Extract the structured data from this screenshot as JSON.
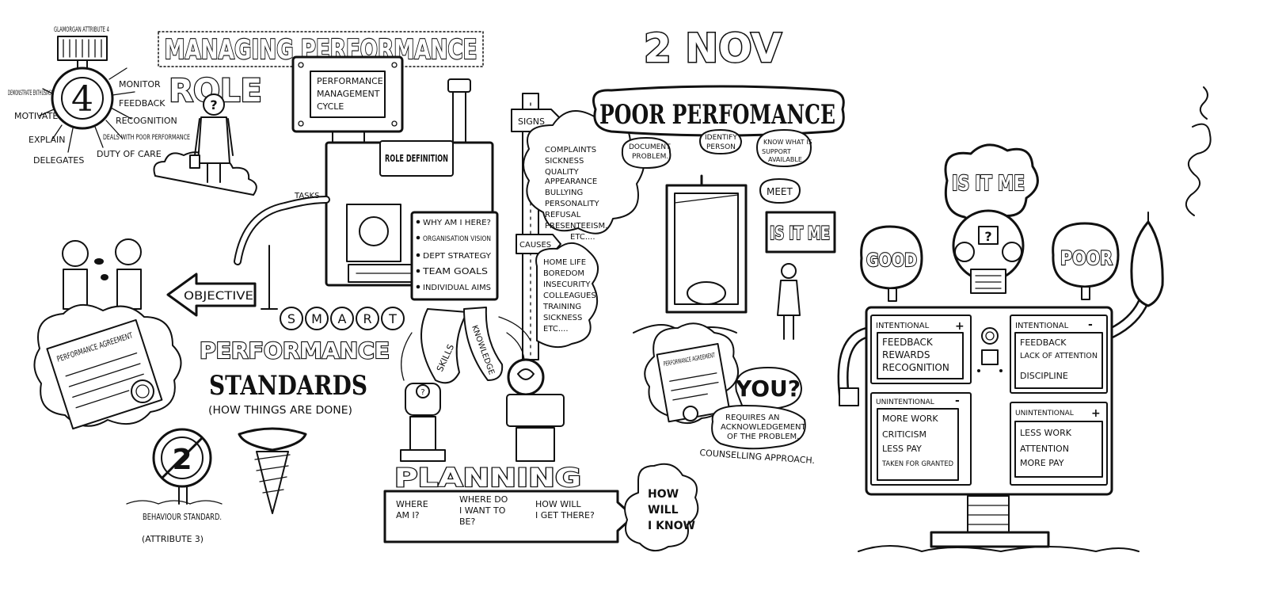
{
  "header": {
    "title": "MANAGING PERFORMANCE",
    "date": "2 NOV"
  },
  "medal": {
    "ribbon": "GLAMORGAN ATTRIBUTE 4",
    "number": "4",
    "duties": [
      "DEMONSTRATE ENTHUSIASM",
      "MONITOR",
      "FEEDBACK",
      "MOTIVATE",
      "RECOGNITION",
      "DEALS WITH POOR PERFORMANCE",
      "EXPLAIN",
      "DUTY OF CARE",
      "DELEGATES"
    ]
  },
  "role": {
    "title": "ROLE",
    "cycle": "PERFORMANCE MANAGEMENT CYCLE",
    "definition": "ROLE DEFINITION",
    "tasks": "TASKS",
    "why_items": [
      "WHY AM I HERE?",
      "ORGANISATION VISION",
      "DEPT STRATEGY",
      "TEAM GOALS",
      "INDIVIDUAL AIMS"
    ],
    "objective": "OBJECTIVE",
    "smart": [
      "S",
      "M",
      "A",
      "R",
      "T"
    ]
  },
  "standards": {
    "agreement": "PERFORMANCE AGREEMENT",
    "performance": "PERFORMANCE",
    "standards": "STANDARDS",
    "subtitle": "(HOW THINGS ARE DONE)",
    "behaviour": "BEHAVIOUR STANDARD.",
    "attribute": "(ATTRIBUTE 3)",
    "sign_number": "2"
  },
  "signs_causes": {
    "signs_label": "SIGNS",
    "signs": [
      "COMPLAINTS",
      "SICKNESS",
      "QUALITY",
      "APPEARANCE",
      "BULLYING",
      "PERSONALITY",
      "REFUSAL",
      "PRESENTEEISM.",
      "ETC...."
    ],
    "causes_label": "CAUSES",
    "causes": [
      "HOME LIFE",
      "BOREDOM",
      "INSECURITY",
      "COLLEAGUES",
      "TRAINING",
      "SICKNESS",
      "ETC...."
    ],
    "skills": "SKILLS",
    "knowledge": "KNOWLEDGE"
  },
  "planning": {
    "title": "PLANNING",
    "questions": [
      "WHERE AM I?",
      "WHERE DO I WANT TO BE?",
      "HOW WILL I GET THERE?"
    ],
    "how_know": "HOW WILL I KNOW"
  },
  "poor": {
    "title": "POOR PERFOMANCE",
    "steps": [
      "DOCUMENT PROBLEM.",
      "IDENTIFY PERSON",
      "KNOW WHAT IS SUPPORT AVAILABLE"
    ],
    "meet": "MEET",
    "is_it_me": "IS IT ME",
    "agreement": "PERFORMANCE AGREEMENT",
    "you": "YOU?",
    "requires": "REQUIRES AN ACKNOWLEDGEMENT OF THE PROBLEM.",
    "counselling": "COUNSELLING APPROACH."
  },
  "robot": {
    "thought": "IS IT ME",
    "face": "?",
    "good": "GOOD",
    "poor": "POOR",
    "panels": [
      {
        "heading": "INTENTIONAL",
        "mark": "+",
        "items": [
          "FEEDBACK",
          "REWARDS",
          "RECOGNITION"
        ]
      },
      {
        "heading": "INTENTIONAL",
        "mark": "-",
        "items": [
          "FEEDBACK",
          "LACK OF ATTENTION",
          "DISCIPLINE"
        ]
      },
      {
        "heading": "UNINTENTIONAL",
        "mark": "-",
        "items": [
          "MORE WORK",
          "CRITICISM",
          "LESS PAY",
          "TAKEN FOR GRANTED"
        ]
      },
      {
        "heading": "UNINTENTIONAL",
        "mark": "+",
        "items": [
          "LESS WORK",
          "ATTENTION",
          "MORE PAY"
        ]
      }
    ]
  }
}
